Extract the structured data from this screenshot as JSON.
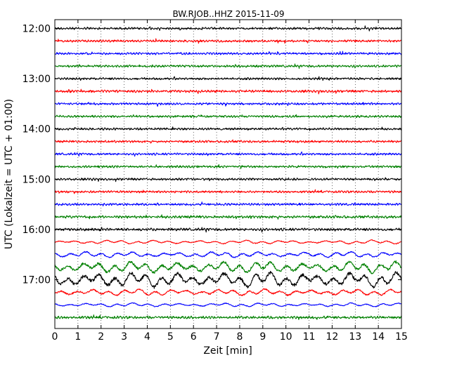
{
  "chart_data": {
    "type": "line",
    "title": "BW.RJOB..HHZ 2015-11-09",
    "xlabel": "Zeit  [min]",
    "ylabel": "UTC (Lokalzeit = UTC + 01:00)",
    "xlim": [
      0,
      15
    ],
    "x_ticks": [
      "0",
      "1",
      "2",
      "3",
      "4",
      "5",
      "6",
      "7",
      "8",
      "9",
      "10",
      "11",
      "12",
      "13",
      "14",
      "15"
    ],
    "y_ticks": [
      "12:00",
      "13:00",
      "14:00",
      "15:00",
      "16:00",
      "17:00"
    ],
    "grid": "vertical dotted lines at each minute",
    "traces_per_hour": 4,
    "trace_color_cycle": [
      "#000000",
      "#ff0000",
      "#0000ff",
      "#008000"
    ],
    "traces": [
      {
        "start": "12:00",
        "amplitude": 1
      },
      {
        "start": "12:15",
        "amplitude": 1
      },
      {
        "start": "12:30",
        "amplitude": 1
      },
      {
        "start": "12:45",
        "amplitude": 1
      },
      {
        "start": "13:00",
        "amplitude": 1
      },
      {
        "start": "13:15",
        "amplitude": 1.1
      },
      {
        "start": "13:30",
        "amplitude": 1
      },
      {
        "start": "13:45",
        "amplitude": 1
      },
      {
        "start": "14:00",
        "amplitude": 1
      },
      {
        "start": "14:15",
        "amplitude": 1
      },
      {
        "start": "14:30",
        "amplitude": 1
      },
      {
        "start": "14:45",
        "amplitude": 1
      },
      {
        "start": "15:00",
        "amplitude": 1
      },
      {
        "start": "15:15",
        "amplitude": 1
      },
      {
        "start": "15:30",
        "amplitude": 1
      },
      {
        "start": "15:45",
        "amplitude": 1.2
      },
      {
        "start": "16:00",
        "amplitude": 1.2
      },
      {
        "start": "16:15",
        "amplitude": 2
      },
      {
        "start": "16:30",
        "amplitude": 3
      },
      {
        "start": "16:45",
        "amplitude": 6
      },
      {
        "start": "17:00",
        "amplitude": 8
      },
      {
        "start": "17:15",
        "amplitude": 3.5
      },
      {
        "start": "17:30",
        "amplitude": 2
      },
      {
        "start": "17:45",
        "amplitude": 1.2
      }
    ]
  }
}
